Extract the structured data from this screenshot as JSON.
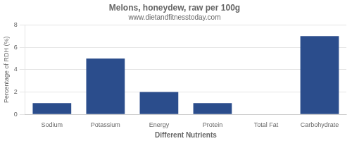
{
  "chart_data": {
    "type": "bar",
    "title": "Melons, honeydew, raw per 100g",
    "subtitle": "www.dietandfitnesstoday.com",
    "xlabel": "Different Nutrients",
    "ylabel": "Percentage of RDH (%)",
    "categories": [
      "Sodium",
      "Potassium",
      "Energy",
      "Protein",
      "Total Fat",
      "Carbohydrate"
    ],
    "values": [
      1,
      5,
      2,
      1,
      0,
      7
    ],
    "color": "#2b4d8c",
    "ylim": [
      0,
      8
    ],
    "yticks": [
      0,
      2,
      4,
      6,
      8
    ],
    "grid": true
  }
}
